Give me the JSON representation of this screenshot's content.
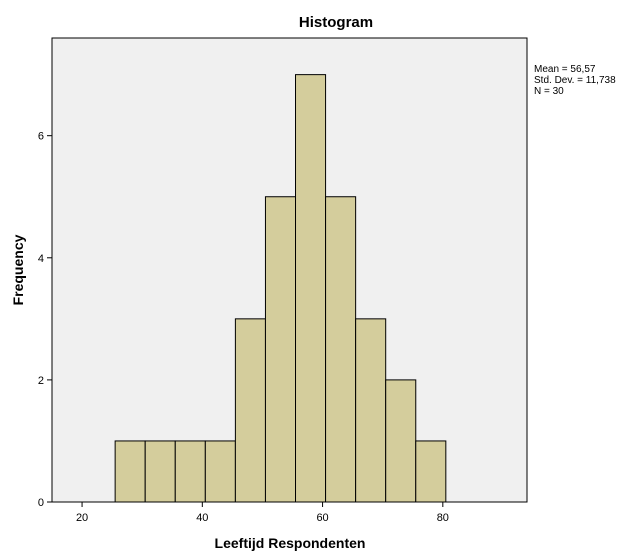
{
  "chart_data": {
    "type": "bar",
    "title": "Histogram",
    "xlabel": "Leeftijd Respondenten",
    "ylabel": "Frequency",
    "xlim": [
      15,
      94
    ],
    "ylim": [
      0,
      7.6
    ],
    "bins": [
      {
        "start": 25.5,
        "end": 30.5,
        "count": 1
      },
      {
        "start": 30.5,
        "end": 35.5,
        "count": 1
      },
      {
        "start": 35.5,
        "end": 40.5,
        "count": 1
      },
      {
        "start": 40.5,
        "end": 45.5,
        "count": 1
      },
      {
        "start": 45.5,
        "end": 50.5,
        "count": 3
      },
      {
        "start": 50.5,
        "end": 55.5,
        "count": 5
      },
      {
        "start": 55.5,
        "end": 60.5,
        "count": 7
      },
      {
        "start": 60.5,
        "end": 65.5,
        "count": 5
      },
      {
        "start": 65.5,
        "end": 70.5,
        "count": 3
      },
      {
        "start": 70.5,
        "end": 75.5,
        "count": 2
      },
      {
        "start": 75.5,
        "end": 80.5,
        "count": 1
      }
    ],
    "xticks": [
      20,
      40,
      60,
      80
    ],
    "yticks": [
      0,
      2,
      4,
      6
    ],
    "stats": [
      "Mean = 56,57",
      "Std. Dev. = 11,738",
      "N = 30"
    ],
    "grid": false,
    "legend": "none",
    "colors": {
      "bar_fill": "#d4cd9c",
      "bar_stroke": "#000000",
      "plot_background": "#f0f0f0"
    }
  }
}
